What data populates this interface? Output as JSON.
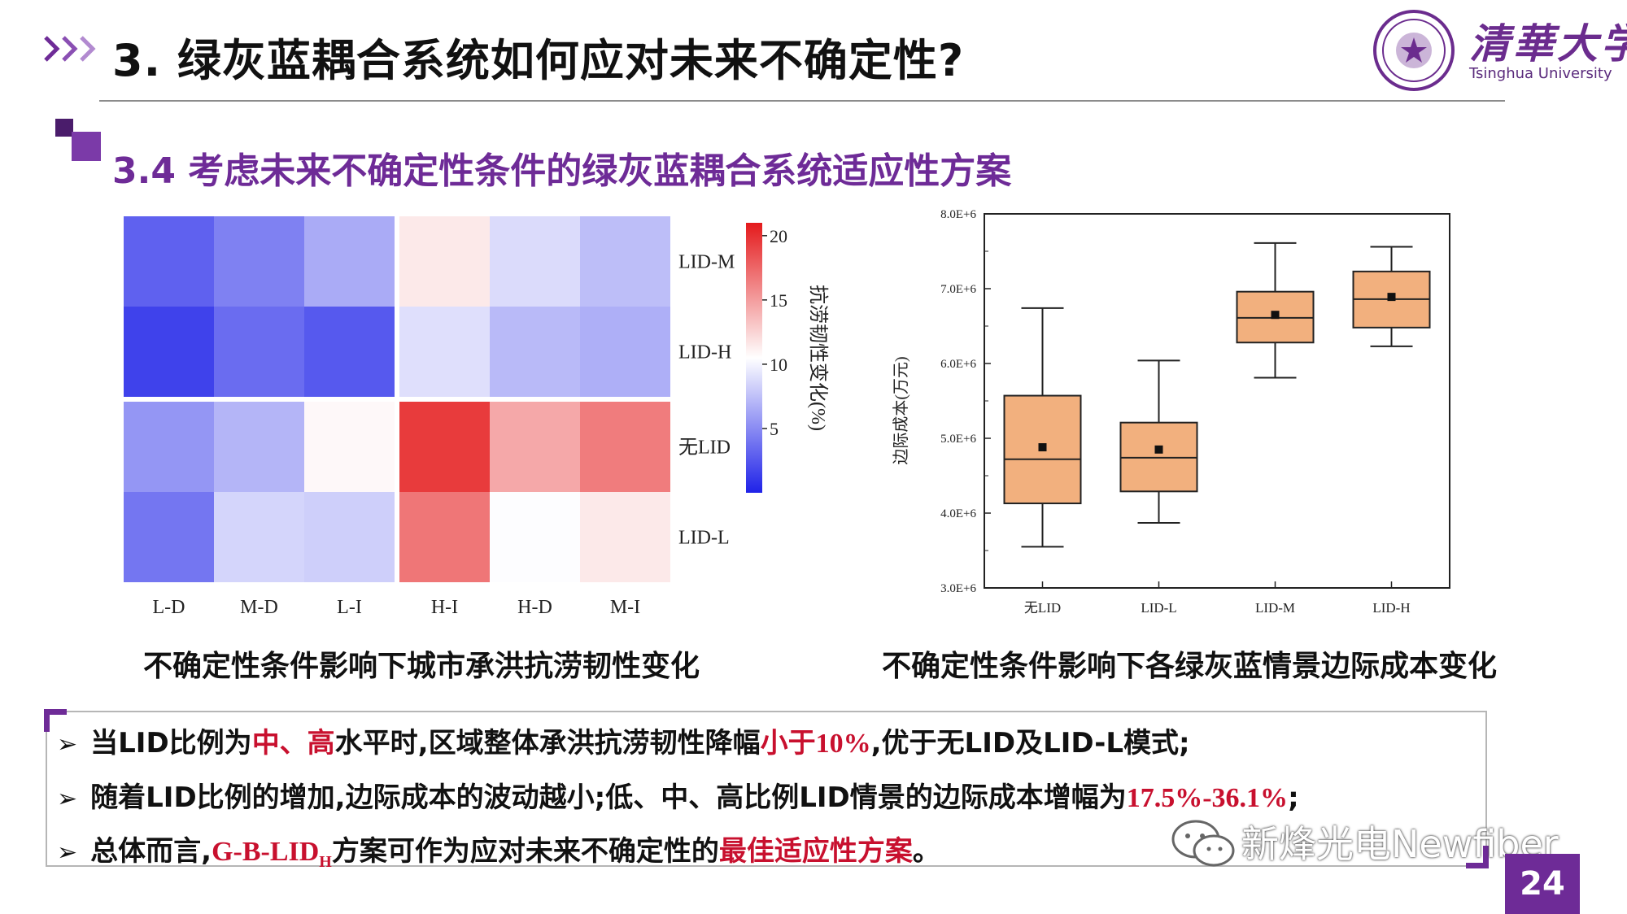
{
  "header": {
    "title": "3. 绿灰蓝耦合系统如何应对未来不确定性?",
    "logo_cn": "清華大学",
    "logo_en": "Tsinghua University",
    "accent_color": "#6e2b97"
  },
  "section": {
    "subtitle": "3.4 考虑未来不确定性条件的绿灰蓝耦合系统适应性方案"
  },
  "chart_data": [
    {
      "type": "heatmap",
      "columns": [
        "L-D",
        "M-D",
        "L-I",
        "H-I",
        "H-D",
        "M-I"
      ],
      "rows": [
        "LID-M",
        "LID-H",
        "无LID",
        "LID-L"
      ],
      "values": [
        [
          3.0,
          4.5,
          6.5,
          11.5,
          8.8,
          7.4
        ],
        [
          1.5,
          3.5,
          2.6,
          9.0,
          7.2,
          6.7
        ],
        [
          5.5,
          7.0,
          10.8,
          19.5,
          14.5,
          16.5
        ],
        [
          4.0,
          8.5,
          8.2,
          16.8,
          10.4,
          11.5
        ]
      ],
      "colorbar": {
        "label": "抗涝韧性变化(%)",
        "range": [
          0,
          21
        ],
        "ticks": [
          "20",
          "15",
          "10",
          "5"
        ],
        "colors": [
          "#1f22e8",
          "#ffffff",
          "#e41a1c"
        ]
      },
      "caption": "不确定性条件影响下城市承洪抗涝韧性变化"
    },
    {
      "type": "box",
      "categories": [
        "无LID",
        "LID-L",
        "LID-M",
        "LID-H"
      ],
      "ylabel": "边际成本(万元)",
      "ylim": [
        3000000,
        8000000
      ],
      "yticks": [
        "3.0E+6",
        "4.0E+6",
        "5.0E+6",
        "6.0E+6",
        "7.0E+6",
        "8.0E+6"
      ],
      "box_color": "#f2b07e",
      "stats": [
        {
          "whisker_low": 3550000,
          "q1": 4130000,
          "median": 4720000,
          "q3": 5570000,
          "whisker_high": 6740000,
          "mean": 4880000
        },
        {
          "whisker_low": 3870000,
          "q1": 4290000,
          "median": 4740000,
          "q3": 5210000,
          "whisker_high": 6040000,
          "mean": 4850000
        },
        {
          "whisker_low": 5810000,
          "q1": 6280000,
          "median": 6610000,
          "q3": 6960000,
          "whisker_high": 7610000,
          "mean": 6650000
        },
        {
          "whisker_low": 6230000,
          "q1": 6480000,
          "median": 6860000,
          "q3": 7230000,
          "whisker_high": 7560000,
          "mean": 6890000
        }
      ],
      "caption": "不确定性条件影响下各绿灰蓝情景边际成本变化"
    }
  ],
  "bullets": [
    {
      "parts": [
        {
          "text": "当LID比例为",
          "red": false
        },
        {
          "text": "中、高",
          "red": true
        },
        {
          "text": "水平时,区域整体承洪抗涝韧性降幅",
          "red": false
        },
        {
          "text": "小于10%",
          "red": true
        },
        {
          "text": ",优于无LID及LID-L模式;",
          "red": false
        }
      ]
    },
    {
      "parts": [
        {
          "text": "随着LID比例的增加,边际成本的波动越小;低、中、高比例LID情景的边际成本增幅为",
          "red": false
        },
        {
          "text": "17.5%-36.1%",
          "red": true
        },
        {
          "text": ";",
          "red": false
        }
      ]
    },
    {
      "parts": [
        {
          "text": "总体而言,",
          "red": false
        },
        {
          "text": "G-B-LID",
          "red": true
        },
        {
          "text": "H",
          "red": true,
          "sub": true
        },
        {
          "text": "方案可作为应对未来不确定性的",
          "red": false
        },
        {
          "text": "最佳适应性方案",
          "red": true
        },
        {
          "text": "。",
          "red": false
        }
      ]
    }
  ],
  "watermark": "新烽光电Newfiber",
  "page_number": "24"
}
